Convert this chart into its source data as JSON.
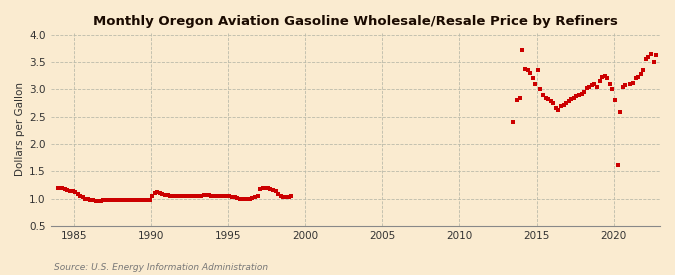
{
  "title": "Monthly Oregon Aviation Gasoline Wholesale/Resale Price by Refiners",
  "ylabel": "Dollars per Gallon",
  "source": "Source: U.S. Energy Information Administration",
  "background_color": "#faebd0",
  "plot_bg_color": "#faebd0",
  "marker_color": "#cc0000",
  "title_color": "#1a0a00",
  "xlim": [
    1983.5,
    2023.0
  ],
  "ylim": [
    0.5,
    4.05
  ],
  "xticks": [
    1985,
    1990,
    1995,
    2000,
    2005,
    2010,
    2015,
    2020
  ],
  "yticks": [
    0.5,
    1.0,
    1.5,
    2.0,
    2.5,
    3.0,
    3.5,
    4.0
  ],
  "data": [
    [
      1984.0,
      1.19
    ],
    [
      1984.08,
      1.2
    ],
    [
      1984.25,
      1.2
    ],
    [
      1984.42,
      1.18
    ],
    [
      1984.58,
      1.16
    ],
    [
      1984.75,
      1.14
    ],
    [
      1984.92,
      1.13
    ],
    [
      1985.08,
      1.12
    ],
    [
      1985.25,
      1.09
    ],
    [
      1985.42,
      1.05
    ],
    [
      1985.58,
      1.02
    ],
    [
      1985.75,
      1.0
    ],
    [
      1985.92,
      0.99
    ],
    [
      1986.08,
      0.98
    ],
    [
      1986.25,
      0.97
    ],
    [
      1986.42,
      0.96
    ],
    [
      1986.58,
      0.96
    ],
    [
      1986.75,
      0.96
    ],
    [
      1986.92,
      0.97
    ],
    [
      1987.08,
      0.97
    ],
    [
      1987.25,
      0.97
    ],
    [
      1987.42,
      0.97
    ],
    [
      1987.58,
      0.97
    ],
    [
      1987.75,
      0.97
    ],
    [
      1987.92,
      0.97
    ],
    [
      1988.08,
      0.97
    ],
    [
      1988.25,
      0.97
    ],
    [
      1988.42,
      0.97
    ],
    [
      1988.58,
      0.97
    ],
    [
      1988.75,
      0.97
    ],
    [
      1988.92,
      0.97
    ],
    [
      1989.08,
      0.97
    ],
    [
      1989.25,
      0.97
    ],
    [
      1989.42,
      0.97
    ],
    [
      1989.58,
      0.97
    ],
    [
      1989.75,
      0.97
    ],
    [
      1989.92,
      0.97
    ],
    [
      1990.08,
      1.05
    ],
    [
      1990.25,
      1.1
    ],
    [
      1990.42,
      1.12
    ],
    [
      1990.58,
      1.1
    ],
    [
      1990.75,
      1.08
    ],
    [
      1990.92,
      1.07
    ],
    [
      1991.08,
      1.06
    ],
    [
      1991.25,
      1.05
    ],
    [
      1991.42,
      1.05
    ],
    [
      1991.58,
      1.05
    ],
    [
      1991.75,
      1.04
    ],
    [
      1991.92,
      1.04
    ],
    [
      1992.08,
      1.04
    ],
    [
      1992.25,
      1.05
    ],
    [
      1992.42,
      1.05
    ],
    [
      1992.58,
      1.05
    ],
    [
      1992.75,
      1.05
    ],
    [
      1992.92,
      1.05
    ],
    [
      1993.08,
      1.05
    ],
    [
      1993.25,
      1.05
    ],
    [
      1993.42,
      1.06
    ],
    [
      1993.58,
      1.06
    ],
    [
      1993.75,
      1.06
    ],
    [
      1993.92,
      1.05
    ],
    [
      1994.08,
      1.05
    ],
    [
      1994.25,
      1.05
    ],
    [
      1994.42,
      1.05
    ],
    [
      1994.58,
      1.05
    ],
    [
      1994.75,
      1.05
    ],
    [
      1994.92,
      1.04
    ],
    [
      1995.08,
      1.04
    ],
    [
      1995.25,
      1.03
    ],
    [
      1995.42,
      1.02
    ],
    [
      1995.58,
      1.01
    ],
    [
      1995.75,
      1.0
    ],
    [
      1995.92,
      0.99
    ],
    [
      1996.08,
      0.99
    ],
    [
      1996.25,
      0.99
    ],
    [
      1996.42,
      1.0
    ],
    [
      1996.58,
      1.01
    ],
    [
      1996.75,
      1.02
    ],
    [
      1996.92,
      1.04
    ],
    [
      1997.08,
      1.18
    ],
    [
      1997.25,
      1.2
    ],
    [
      1997.42,
      1.2
    ],
    [
      1997.58,
      1.19
    ],
    [
      1997.75,
      1.18
    ],
    [
      1997.92,
      1.16
    ],
    [
      1998.08,
      1.13
    ],
    [
      1998.25,
      1.08
    ],
    [
      1998.42,
      1.04
    ],
    [
      1998.58,
      1.02
    ],
    [
      1998.75,
      1.02
    ],
    [
      1998.92,
      1.02
    ],
    [
      1999.08,
      1.04
    ],
    [
      2013.5,
      2.4
    ],
    [
      2013.75,
      2.8
    ],
    [
      2013.92,
      2.85
    ],
    [
      2014.08,
      3.72
    ],
    [
      2014.25,
      3.38
    ],
    [
      2014.42,
      3.35
    ],
    [
      2014.58,
      3.3
    ],
    [
      2014.75,
      3.2
    ],
    [
      2014.92,
      3.1
    ],
    [
      2015.08,
      3.35
    ],
    [
      2015.25,
      3.0
    ],
    [
      2015.42,
      2.9
    ],
    [
      2015.58,
      2.85
    ],
    [
      2015.75,
      2.82
    ],
    [
      2015.92,
      2.78
    ],
    [
      2016.08,
      2.75
    ],
    [
      2016.25,
      2.65
    ],
    [
      2016.42,
      2.62
    ],
    [
      2016.58,
      2.7
    ],
    [
      2016.75,
      2.72
    ],
    [
      2016.92,
      2.75
    ],
    [
      2017.08,
      2.78
    ],
    [
      2017.25,
      2.82
    ],
    [
      2017.42,
      2.85
    ],
    [
      2017.58,
      2.88
    ],
    [
      2017.75,
      2.9
    ],
    [
      2017.92,
      2.92
    ],
    [
      2018.08,
      2.95
    ],
    [
      2018.25,
      3.02
    ],
    [
      2018.42,
      3.05
    ],
    [
      2018.58,
      3.08
    ],
    [
      2018.75,
      3.1
    ],
    [
      2018.92,
      3.05
    ],
    [
      2019.08,
      3.15
    ],
    [
      2019.25,
      3.22
    ],
    [
      2019.42,
      3.25
    ],
    [
      2019.58,
      3.2
    ],
    [
      2019.75,
      3.1
    ],
    [
      2019.92,
      3.0
    ],
    [
      2020.08,
      2.8
    ],
    [
      2020.25,
      1.62
    ],
    [
      2020.42,
      2.58
    ],
    [
      2020.58,
      3.05
    ],
    [
      2020.75,
      3.08
    ],
    [
      2021.08,
      3.1
    ],
    [
      2021.25,
      3.12
    ],
    [
      2021.42,
      3.2
    ],
    [
      2021.58,
      3.22
    ],
    [
      2021.75,
      3.28
    ],
    [
      2021.92,
      3.35
    ],
    [
      2022.08,
      3.55
    ],
    [
      2022.25,
      3.6
    ],
    [
      2022.42,
      3.65
    ],
    [
      2022.58,
      3.5
    ],
    [
      2022.75,
      3.62
    ]
  ]
}
